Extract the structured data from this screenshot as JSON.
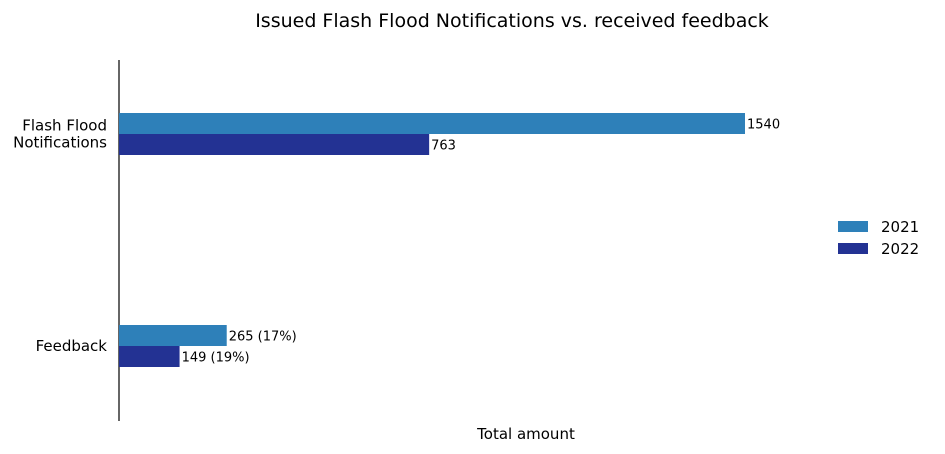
{
  "chart_data": {
    "type": "bar",
    "orientation": "horizontal",
    "title": "Issued Flash Flood Notifications vs. received feedback",
    "xlabel": "Total amount",
    "ylabel": "",
    "categories": [
      [
        "Flash Flood",
        "Notifications"
      ],
      [
        "Feedback"
      ]
    ],
    "series": [
      {
        "name": "2021",
        "color": "#2e80b9",
        "values": [
          1540,
          265
        ],
        "labels": [
          "1540",
          "265 (17%)"
        ]
      },
      {
        "name": "2022",
        "color": "#233293",
        "values": [
          763,
          149
        ],
        "labels": [
          "763",
          "149 (19%)"
        ]
      }
    ],
    "xlim": [
      0,
      1540
    ],
    "grid": false,
    "legend_position": "right"
  }
}
